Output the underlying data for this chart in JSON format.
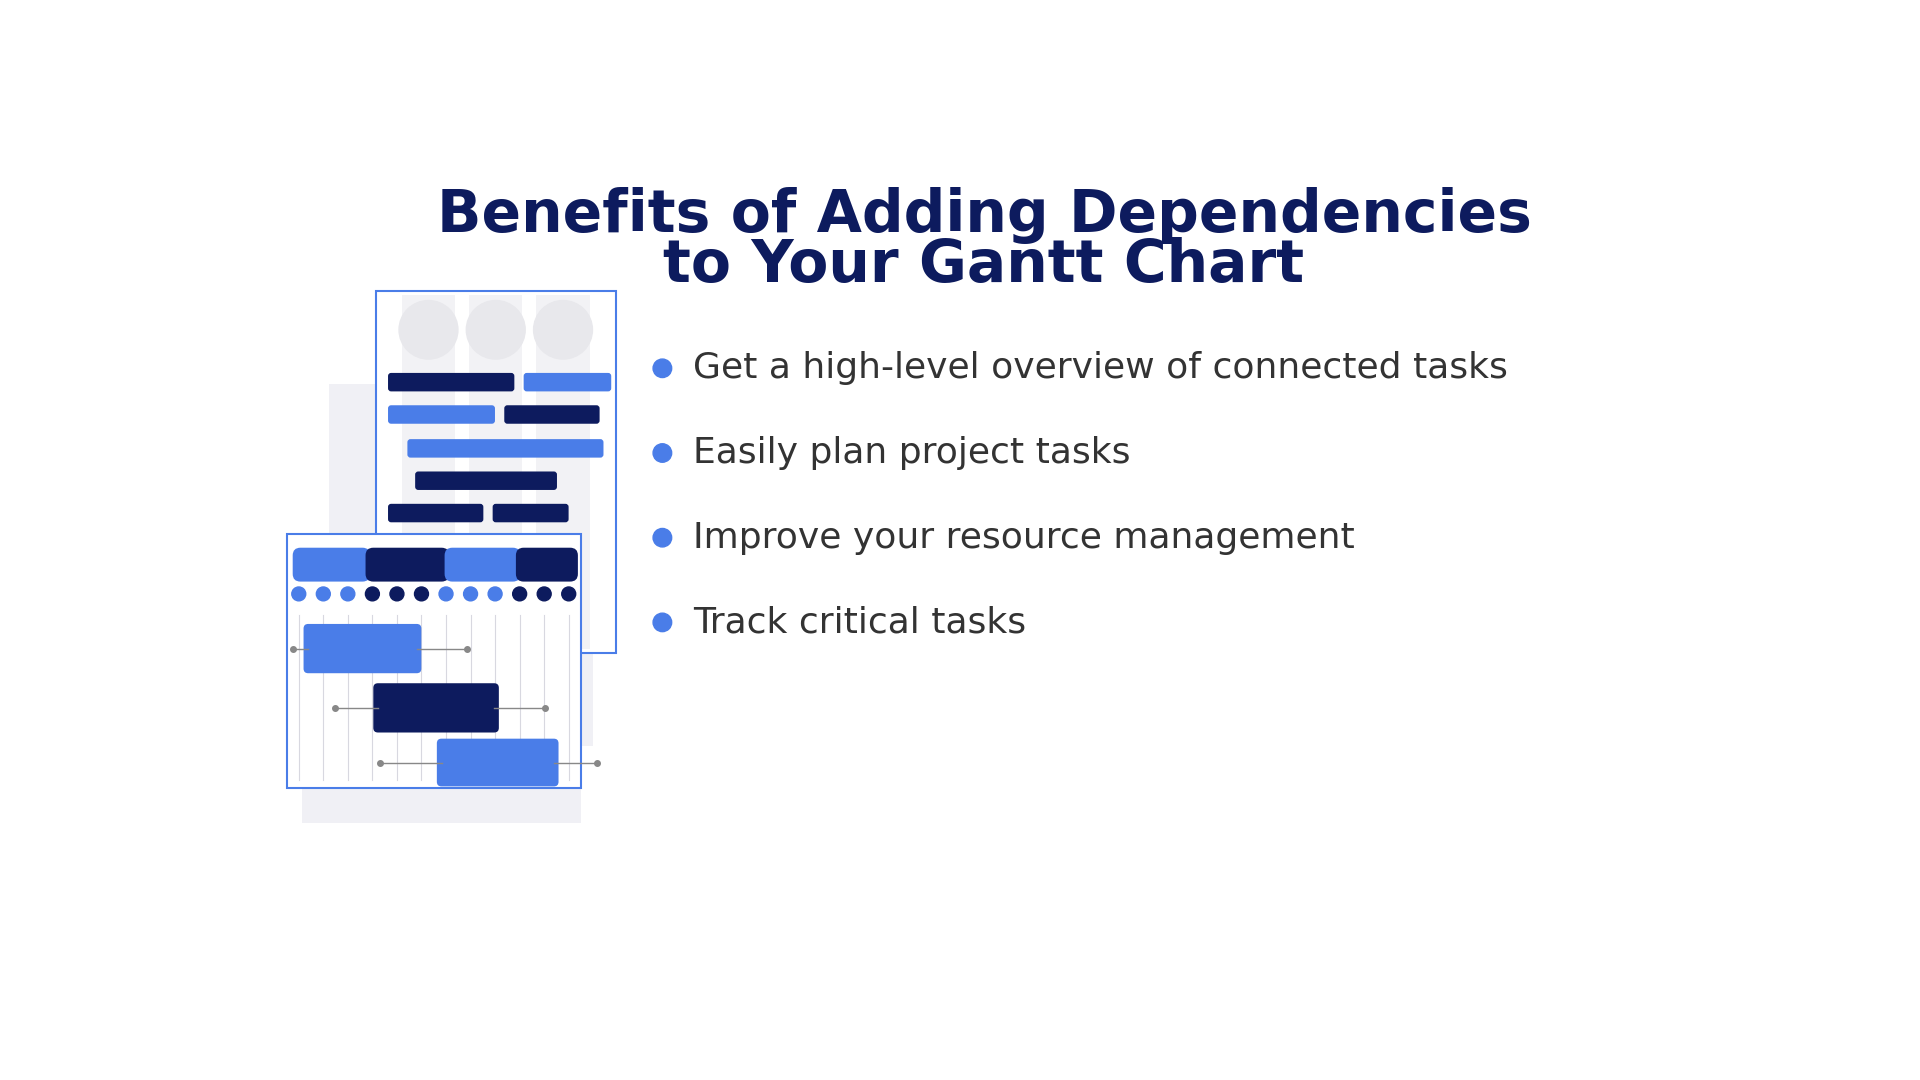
{
  "title_line1": "Benefits of Adding Dependencies",
  "title_line2": "to Your Gantt Chart",
  "title_color": "#0d1b5e",
  "title_fontsize": 42,
  "bg_color": "#ffffff",
  "bullet_color": "#4a7de8",
  "bullet_text_color": "#333333",
  "bullet_fontsize": 26,
  "bullets": [
    "Get a high-level overview of connected tasks",
    "Easily plan project tasks",
    "Improve your resource management",
    "Track critical tasks"
  ],
  "dark_blue": "#0d1b5e",
  "mid_blue": "#4a7de8",
  "shadow_gray": "#f0f0f5",
  "border_blue": "#4a7de8",
  "col_band_color": "#eeeeee"
}
